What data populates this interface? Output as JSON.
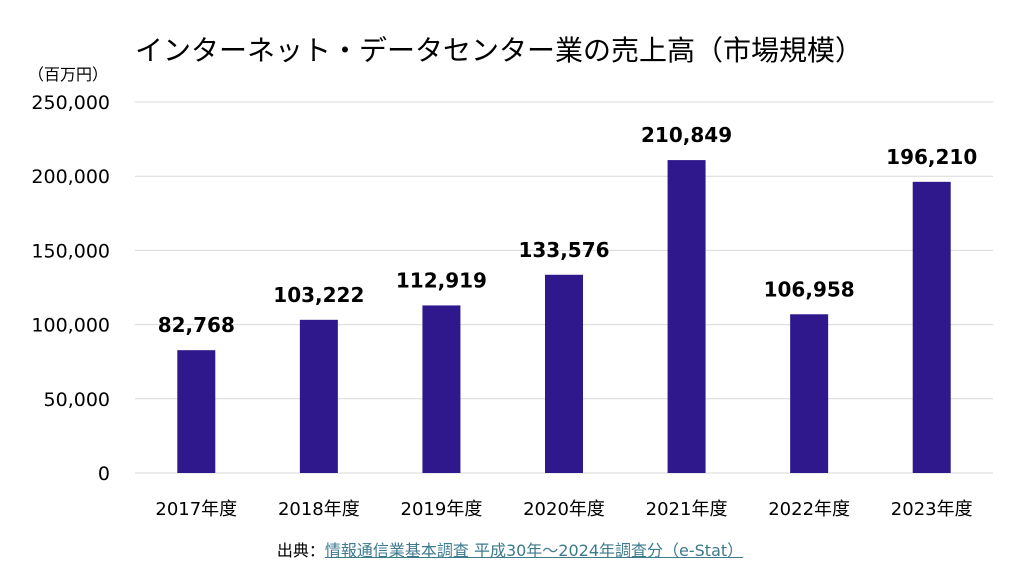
{
  "chart_data": {
    "type": "bar",
    "title": "インターネット・データセンター業の売上高（市場規模）",
    "ylabel": "（百万円）",
    "xlabel": "",
    "categories": [
      "2017年度",
      "2018年度",
      "2019年度",
      "2020年度",
      "2021年度",
      "2022年度",
      "2023年度"
    ],
    "values": [
      82768,
      103222,
      112919,
      133576,
      210849,
      106958,
      196210
    ],
    "data_labels": [
      "82,768",
      "103,222",
      "112,919",
      "133,576",
      "210,849",
      "106,958",
      "196,210"
    ],
    "ylim": [
      0,
      250000
    ],
    "yticks": [
      0,
      50000,
      100000,
      150000,
      200000,
      250000
    ],
    "ytick_labels": [
      "0",
      "50,000",
      "100,000",
      "150,000",
      "200,000",
      "250,000"
    ],
    "grid": true,
    "legend": "none",
    "bar_color": "#2e188c"
  },
  "source": {
    "prefix": "出典：",
    "link_text": "情報通信業基本調査 平成30年〜2024年調査分（e-Stat）",
    "link_color": "#3c7a8c"
  }
}
